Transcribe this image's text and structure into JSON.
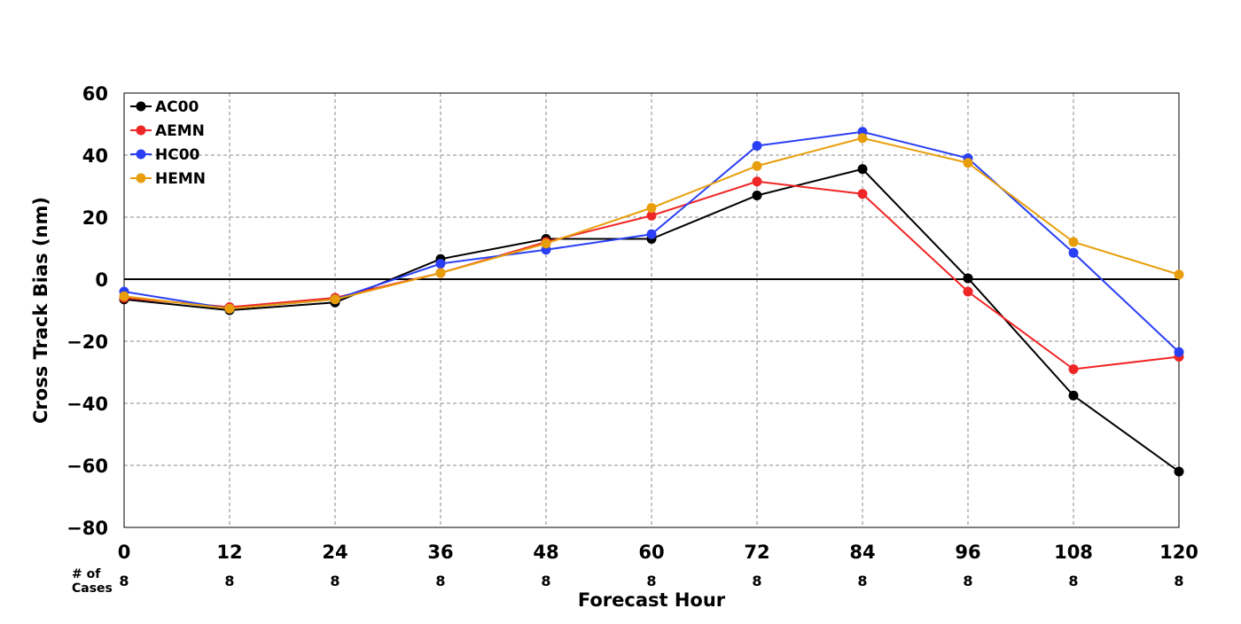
{
  "chart_data": {
    "type": "line",
    "title": "",
    "xlabel": "Forecast Hour",
    "ylabel": "Cross Track Bias (nm)",
    "x": [
      0,
      12,
      24,
      36,
      48,
      60,
      72,
      84,
      96,
      108,
      120
    ],
    "x_tick_labels": [
      "0",
      "12",
      "24",
      "36",
      "48",
      "60",
      "72",
      "84",
      "96",
      "108",
      "120"
    ],
    "xlim": [
      0,
      120
    ],
    "ylim": [
      -80,
      60
    ],
    "y_ticks": [
      60,
      40,
      20,
      0,
      -20,
      -40,
      -60,
      -80
    ],
    "y_tick_labels": [
      "60",
      "40",
      "20",
      "0",
      "−20",
      "−40",
      "−60",
      "−80"
    ],
    "grid": true,
    "legend_position": "top-left",
    "series": [
      {
        "name": "AC00",
        "color": "#000000",
        "values": [
          -6.5,
          -10,
          -7.5,
          6.5,
          13,
          13,
          27,
          35.5,
          0.3,
          -37.5,
          -62
        ]
      },
      {
        "name": "AEMN",
        "color": "#f02626",
        "values": [
          -6,
          -9,
          -6,
          2,
          12,
          20.5,
          31.5,
          27.5,
          -4,
          -29,
          -25
        ]
      },
      {
        "name": "HC00",
        "color": "#2a3ff5",
        "values": [
          -4,
          -9.5,
          -6.5,
          5,
          9.5,
          14.5,
          43,
          47.5,
          39,
          8.5,
          -23.5
        ]
      },
      {
        "name": "HEMN",
        "color": "#e89e0b",
        "values": [
          -5.5,
          -9.5,
          -6.5,
          2,
          11.5,
          23,
          36.5,
          45.5,
          37.5,
          12,
          1.5
        ]
      }
    ],
    "cases": {
      "label_line1": "# of",
      "label_line2": "Cases",
      "values": [
        "8",
        "8",
        "8",
        "8",
        "8",
        "8",
        "8",
        "8",
        "8",
        "8",
        "8"
      ]
    }
  }
}
